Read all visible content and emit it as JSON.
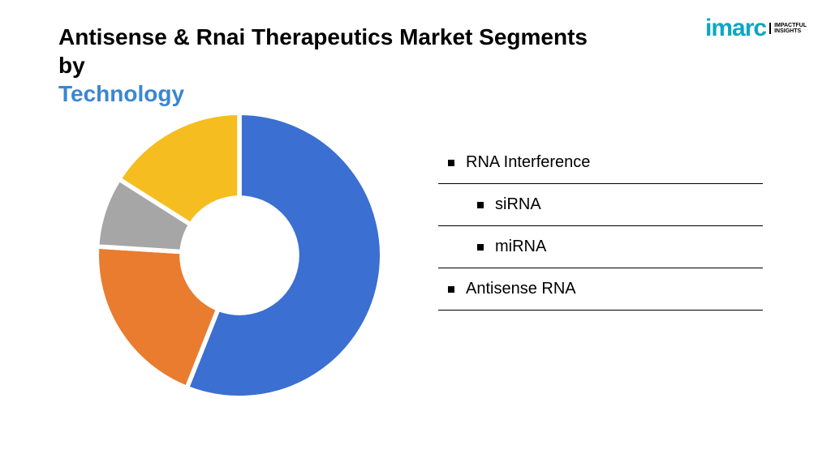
{
  "title": {
    "line1": "Antisense & Rnai Therapeutics Market Segments by",
    "line2": "Technology",
    "line1_color": "#000000",
    "line2_color": "#3b86d1",
    "fontsize": 28,
    "fontweight": 700
  },
  "logo": {
    "text": "imarc",
    "color": "#0aa7c4",
    "tagline1": "IMPACTFUL",
    "tagline2": "INSIGHTS"
  },
  "chart": {
    "type": "donut",
    "inner_radius_ratio": 0.42,
    "outline_color": "#ffffff",
    "outline_width": 3,
    "background_color": "#ffffff",
    "slices": [
      {
        "label": "RNA Interference",
        "value": 56,
        "color": "#3b6fd1"
      },
      {
        "label": "Antisense RNA",
        "value": 20,
        "color": "#e97c2f"
      },
      {
        "label": "miRNA",
        "value": 8,
        "color": "#a6a6a6"
      },
      {
        "label": "siRNA",
        "value": 16,
        "color": "#f5bd1f"
      }
    ],
    "start_angle_deg": -90
  },
  "legend": {
    "items": [
      {
        "label": "RNA Interference",
        "indent": false
      },
      {
        "label": "siRNA",
        "indent": true
      },
      {
        "label": "miRNA",
        "indent": true
      },
      {
        "label": "Antisense RNA",
        "indent": false
      }
    ],
    "label_fontsize": 20,
    "divider_color": "#000000"
  }
}
